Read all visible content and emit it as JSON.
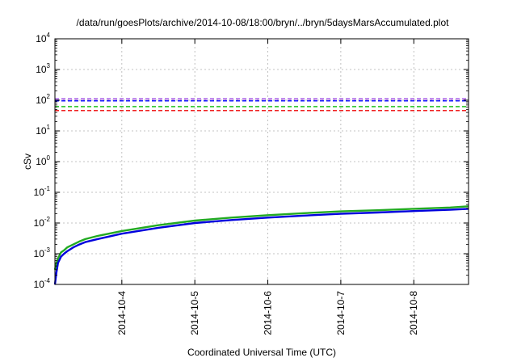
{
  "chart_data": {
    "type": "line",
    "title": "/data/run/goesPlots/archive/2014-10-08/18:00/bryn/../bryn/5daysMarsAccumulated.plot",
    "xlabel": "Coordinated Universal Time (UTC)",
    "ylabel": "cSv",
    "y_scale": "log",
    "ylim": [
      0.0001,
      10000
    ],
    "xlim": [
      "2014-10-03 02:00",
      "2014-10-08 18:00"
    ],
    "x_ticks": [
      "2014-10-4",
      "2014-10-5",
      "2014-10-6",
      "2014-10-7",
      "2014-10-8"
    ],
    "y_ticks": [
      {
        "base": "10",
        "exp": "-4"
      },
      {
        "base": "10",
        "exp": "-3"
      },
      {
        "base": "10",
        "exp": "-2"
      },
      {
        "base": "10",
        "exp": "-1"
      },
      {
        "base": "10",
        "exp": "0"
      },
      {
        "base": "10",
        "exp": "1"
      },
      {
        "base": "10",
        "exp": "2"
      },
      {
        "base": "10",
        "exp": "3"
      },
      {
        "base": "10",
        "exp": "4"
      }
    ],
    "grid": true,
    "reference_lines": [
      {
        "value": 110,
        "color": "#8a2be2",
        "style": "dashed"
      },
      {
        "value": 95,
        "color": "#0000ff",
        "style": "dashed"
      },
      {
        "value": 62,
        "color": "#00bb00",
        "style": "dashed"
      },
      {
        "value": 46,
        "color": "#ee0000",
        "style": "dashed"
      }
    ],
    "series": [
      {
        "color": "#22aa22",
        "x": [
          "2014-10-03 02:00",
          "2014-10-03 02:30",
          "2014-10-03 03:00",
          "2014-10-03 04:00",
          "2014-10-03 05:00",
          "2014-10-03 06:00",
          "2014-10-03 08:00",
          "2014-10-03 10:00",
          "2014-10-03 12:00",
          "2014-10-03 16:00",
          "2014-10-04 00:00",
          "2014-10-04 12:00",
          "2014-10-05 00:00",
          "2014-10-05 12:00",
          "2014-10-06 00:00",
          "2014-10-06 12:00",
          "2014-10-07 00:00",
          "2014-10-07 12:00",
          "2014-10-08 00:00",
          "2014-10-08 12:00",
          "2014-10-08 18:00"
        ],
        "y": [
          0.0003,
          0.0005,
          0.0007,
          0.0011,
          0.0013,
          0.0016,
          0.002,
          0.0025,
          0.003,
          0.0038,
          0.0055,
          0.0085,
          0.012,
          0.015,
          0.018,
          0.021,
          0.024,
          0.026,
          0.029,
          0.032,
          0.035
        ]
      },
      {
        "color": "#0000dd",
        "x": [
          "2014-10-03 02:00",
          "2014-10-03 02:30",
          "2014-10-03 03:00",
          "2014-10-03 04:00",
          "2014-10-03 05:00",
          "2014-10-03 06:00",
          "2014-10-03 08:00",
          "2014-10-03 10:00",
          "2014-10-03 12:00",
          "2014-10-03 16:00",
          "2014-10-04 00:00",
          "2014-10-04 12:00",
          "2014-10-05 00:00",
          "2014-10-05 12:00",
          "2014-10-06 00:00",
          "2014-10-06 12:00",
          "2014-10-07 00:00",
          "2014-10-07 12:00",
          "2014-10-08 00:00",
          "2014-10-08 12:00",
          "2014-10-08 18:00"
        ],
        "y": [
          0.0001,
          0.00025,
          0.0005,
          0.0008,
          0.001,
          0.0012,
          0.0016,
          0.002,
          0.0024,
          0.003,
          0.0045,
          0.007,
          0.01,
          0.0125,
          0.015,
          0.0175,
          0.02,
          0.022,
          0.0245,
          0.027,
          0.029
        ]
      }
    ]
  }
}
